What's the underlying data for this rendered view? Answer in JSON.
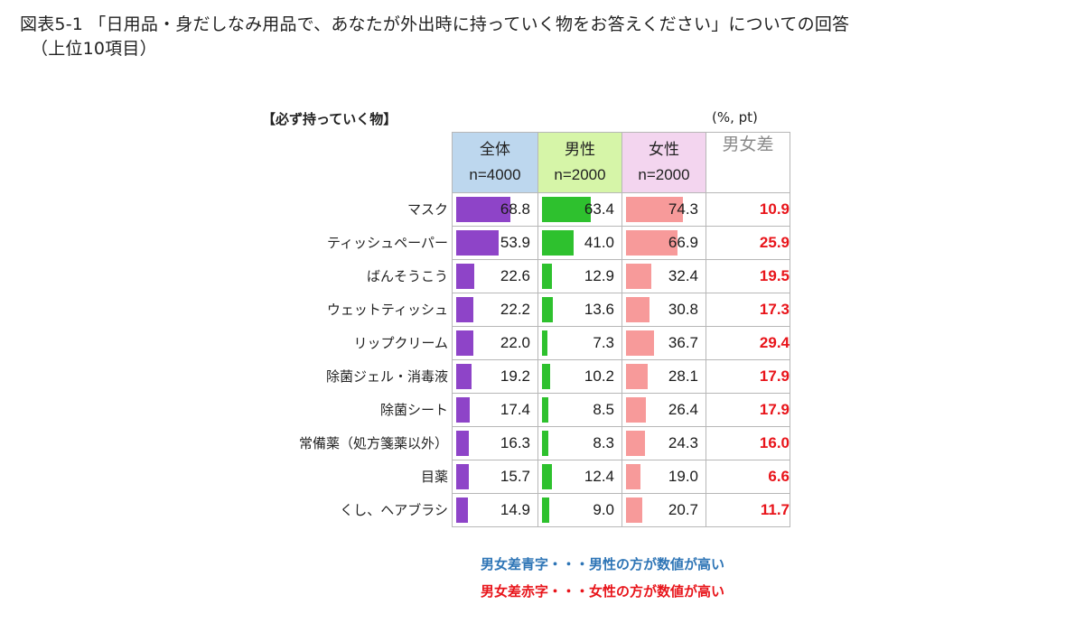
{
  "title": {
    "line1": "図表5-1 「日用品・身だしなみ用品で、あなたが外出時に持っていく物をお答えください」についての回答",
    "line2": "（上位10項目）"
  },
  "section_label": "【必ず持っていく物】",
  "unit_label": "(%, pt)",
  "columns": {
    "all": {
      "name": "全体",
      "n": "n=4000",
      "color": "#8e44c8"
    },
    "male": {
      "name": "男性",
      "n": "n=2000",
      "color": "#2ec12e"
    },
    "female": {
      "name": "女性",
      "n": "n=2000",
      "color": "#f79a9a"
    },
    "diff": {
      "name": "男女差"
    }
  },
  "chart_data": {
    "type": "table",
    "categories": [
      "マスク",
      "ティッシュペーパー",
      "ばんそうこう",
      "ウェットティッシュ",
      "リップクリーム",
      "除菌ジェル・消毒液",
      "除菌シート",
      "常備薬（処方箋薬以外）",
      "目薬",
      "くし、ヘアブラシ"
    ],
    "series": [
      {
        "name": "全体",
        "values": [
          68.8,
          53.9,
          22.6,
          22.2,
          22.0,
          19.2,
          17.4,
          16.3,
          15.7,
          14.9
        ]
      },
      {
        "name": "男性",
        "values": [
          63.4,
          41.0,
          12.9,
          13.6,
          7.3,
          10.2,
          8.5,
          8.3,
          12.4,
          9.0
        ]
      },
      {
        "name": "女性",
        "values": [
          74.3,
          66.9,
          32.4,
          30.8,
          36.7,
          28.1,
          26.4,
          24.3,
          19.0,
          20.7
        ]
      },
      {
        "name": "男女差",
        "values": [
          10.9,
          25.9,
          19.5,
          17.3,
          29.4,
          17.9,
          17.9,
          16.0,
          6.6,
          11.7
        ]
      }
    ],
    "bar_scale_max": 100
  },
  "diff_color": "#e8141a",
  "notes": {
    "blue": "男女差青字・・・男性の方が数値が高い",
    "red": "男女差赤字・・・女性の方が数値が高い"
  }
}
